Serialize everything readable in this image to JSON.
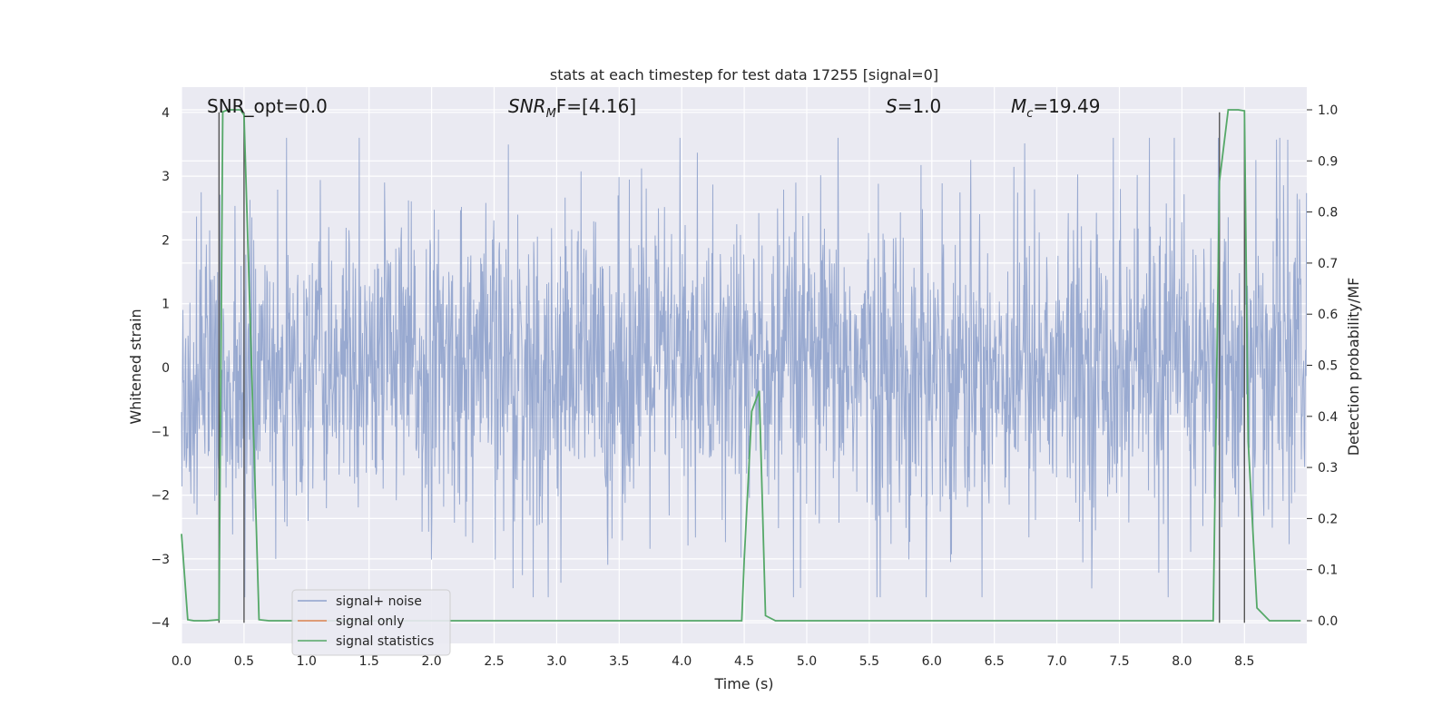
{
  "chart_data": {
    "type": "line",
    "title": "stats at each timestep for test data 17255 [signal=0]",
    "xlabel": "Time (s)",
    "ylabel_left": "Whitened strain",
    "ylabel_right": "Detection probability/MF",
    "xlim": [
      0.0,
      9.0
    ],
    "ylim_left": [
      -4.4,
      4.4
    ],
    "ylim_right": [
      -0.05,
      1.04
    ],
    "xticks": [
      0.0,
      0.5,
      1.0,
      1.5,
      2.0,
      2.5,
      3.0,
      3.5,
      4.0,
      4.5,
      5.0,
      5.5,
      6.0,
      6.5,
      7.0,
      7.5,
      8.0,
      8.5
    ],
    "xtick_labels": [
      "0.0",
      "0.5",
      "1.0",
      "1.5",
      "2.0",
      "2.5",
      "3.0",
      "3.5",
      "4.0",
      "4.5",
      "5.0",
      "5.5",
      "6.0",
      "6.5",
      "7.0",
      "7.5",
      "8.0",
      "8.5"
    ],
    "yticks_left": [
      -4,
      -3,
      -2,
      -1,
      0,
      1,
      2,
      3,
      4
    ],
    "ytick_labels_left": [
      "−4",
      "−3",
      "−2",
      "−1",
      "0",
      "1",
      "2",
      "3",
      "4"
    ],
    "yticks_right": [
      0.0,
      0.1,
      0.2,
      0.3,
      0.4,
      0.5,
      0.6,
      0.7,
      0.8,
      0.9,
      1.0
    ],
    "ytick_labels_right": [
      "0.0",
      "0.1",
      "0.2",
      "0.3",
      "0.4",
      "0.5",
      "0.6",
      "0.7",
      "0.8",
      "0.9",
      "1.0"
    ],
    "grid": true,
    "legend_position": "lower-left",
    "annotations": {
      "snr_opt": "SNR_opt=0.0",
      "snr_mf_sym": "SNR",
      "snr_mf_sub": "M",
      "snr_mf_rest": "F=[4.16]",
      "s_sym": "S",
      "s_rest": "=1.0",
      "mc_sym": "M",
      "mc_sub": "c",
      "mc_rest": "=19.49"
    },
    "series": [
      {
        "name": "signal+ noise",
        "color": "#8fa2cc",
        "description_axis": "left",
        "note_values": "dense noise, mostly within about ±1.6 with spikes up to about ±3.6",
        "approx_envelope": [
          -3.6,
          3.6
        ]
      },
      {
        "name": "signal only",
        "color": "#dd8452",
        "values_x": [],
        "values_y": []
      },
      {
        "name": "signal statistics",
        "color": "#55a868",
        "axis": "right",
        "x": [
          0.0,
          0.05,
          0.1,
          0.2,
          0.3,
          0.3,
          0.33,
          0.37,
          0.42,
          0.47,
          0.5,
          0.56,
          0.62,
          0.7,
          4.48,
          4.5,
          4.56,
          4.62,
          4.67,
          4.75,
          8.25,
          8.3,
          8.37,
          8.45,
          8.5,
          8.53,
          8.6,
          8.7,
          8.95
        ],
        "y": [
          0.17,
          0.002,
          0.0,
          0.0,
          0.002,
          0.005,
          0.996,
          1.0,
          1.0,
          1.0,
          0.99,
          0.5,
          0.002,
          0.0,
          0.0,
          0.12,
          0.41,
          0.45,
          0.01,
          0.0,
          0.0,
          0.86,
          1.0,
          1.0,
          0.998,
          0.35,
          0.025,
          0.0,
          0.0
        ]
      }
    ],
    "vertical_lines": {
      "color": "#555555",
      "x": [
        0.3,
        0.5,
        8.3,
        8.5
      ],
      "ymin": -4,
      "ymax": 4
    }
  }
}
